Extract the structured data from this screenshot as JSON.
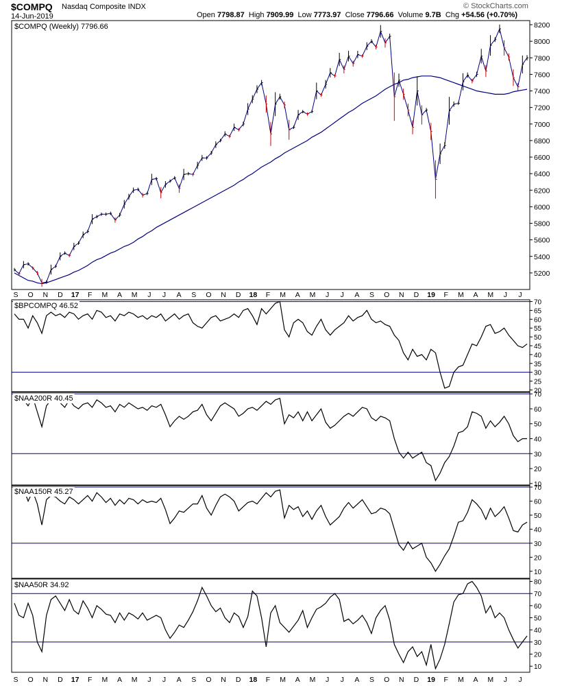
{
  "header": {
    "symbol": "$COMPQ",
    "name": "Nasdaq Composite INDX",
    "date": "14-Jun-2019",
    "watermark": "© StockCharts.com",
    "open_label": "Open",
    "open": "7798.87",
    "high_label": "High",
    "high": "7909.99",
    "low_label": "Low",
    "low": "7773.97",
    "close_label": "Close",
    "close": "7796.66",
    "volume_label": "Volume",
    "volume": "9.7B",
    "chg_label": "Chg",
    "chg": "+54.56 (+0.70%)"
  },
  "colors": {
    "price_up": "#000000",
    "price_down": "#cc0000",
    "ma": "#000080",
    "line": "#000000",
    "ref": "#000080",
    "border": "#000000"
  },
  "x_axis": {
    "labels": [
      "S",
      "O",
      "N",
      "D",
      "17",
      "F",
      "M",
      "A",
      "M",
      "J",
      "J",
      "A",
      "S",
      "O",
      "N",
      "D",
      "18",
      "F",
      "M",
      "A",
      "M",
      "J",
      "J",
      "A",
      "S",
      "O",
      "N",
      "D",
      "19",
      "F",
      "M",
      "A",
      "M",
      "J",
      "J"
    ]
  },
  "chart_data": [
    {
      "type": "line",
      "title": "$COMPQ (Weekly) 7796.66",
      "ylim": [
        5000,
        8250
      ],
      "y_ticks": [
        5200,
        5400,
        5600,
        5800,
        6000,
        6200,
        6400,
        6600,
        6800,
        7000,
        7200,
        7400,
        7600,
        7800,
        8000,
        8200
      ],
      "series": [
        {
          "role": "price",
          "values": [
            5240,
            5190,
            5300,
            5310,
            5260,
            5200,
            5080,
            5090,
            5240,
            5280,
            5400,
            5440,
            5410,
            5520,
            5560,
            5660,
            5700,
            5850,
            5880,
            5910,
            5910,
            5920,
            5840,
            5900,
            6030,
            6120,
            6200,
            6210,
            6140,
            6160,
            6330,
            6340,
            6170,
            6270,
            6310,
            6350,
            6220,
            6390,
            6400,
            6390,
            6500,
            6590,
            6590,
            6650,
            6750,
            6800,
            6880,
            6850,
            6960,
            6930,
            7000,
            7180,
            7300,
            7420,
            7500,
            7240,
            6880,
            7240,
            7330,
            7230,
            6930,
            6960,
            7110,
            7150,
            7120,
            7150,
            7400,
            7350,
            7480,
            7620,
            7580,
            7780,
            7660,
            7820,
            7730,
            7840,
            7820,
            7940,
            8000,
            7930,
            8120,
            7980,
            8060,
            7330,
            7530,
            7360,
            7170,
            6960,
            7400,
            7110,
            7170,
            6910,
            6330,
            6640,
            6740,
            7160,
            7240,
            7250,
            7510,
            7590,
            7520,
            7600,
            7820,
            7640,
            7950,
            8020,
            8150,
            7920,
            7810,
            7560,
            7450,
            7720,
            7800
          ]
        },
        {
          "role": "ma",
          "name": "",
          "values": [
            5200,
            5170,
            5140,
            5110,
            5100,
            5080,
            5070,
            5080,
            5100,
            5120,
            5140,
            5160,
            5180,
            5210,
            5230,
            5260,
            5290,
            5330,
            5360,
            5380,
            5410,
            5440,
            5460,
            5490,
            5520,
            5540,
            5570,
            5610,
            5640,
            5680,
            5710,
            5750,
            5780,
            5810,
            5840,
            5870,
            5900,
            5930,
            5960,
            5990,
            6020,
            6050,
            6080,
            6110,
            6140,
            6170,
            6200,
            6230,
            6260,
            6300,
            6330,
            6370,
            6400,
            6440,
            6480,
            6510,
            6540,
            6580,
            6610,
            6650,
            6680,
            6710,
            6740,
            6770,
            6800,
            6840,
            6870,
            6900,
            6940,
            6980,
            7020,
            7060,
            7100,
            7140,
            7170,
            7210,
            7250,
            7280,
            7310,
            7340,
            7380,
            7420,
            7450,
            7480,
            7500,
            7530,
            7540,
            7560,
            7570,
            7580,
            7580,
            7580,
            7570,
            7560,
            7540,
            7520,
            7500,
            7480,
            7460,
            7440,
            7420,
            7400,
            7390,
            7380,
            7370,
            7360,
            7360,
            7360,
            7370,
            7390,
            7400,
            7410,
            7420
          ]
        }
      ]
    },
    {
      "type": "line",
      "title": "$BPCOMPQ 46.52",
      "ylim": [
        19,
        71
      ],
      "y_ticks": [
        20,
        25,
        30,
        35,
        40,
        45,
        50,
        55,
        60,
        65,
        70
      ],
      "ref_lines": [
        70,
        30
      ],
      "values": [
        63,
        60,
        60,
        55,
        62,
        58,
        52,
        62,
        64,
        62,
        63,
        61,
        64,
        63,
        60,
        62,
        63,
        60,
        65,
        64,
        61,
        62,
        59,
        63,
        62,
        64,
        63,
        61,
        62,
        60,
        62,
        61,
        63,
        59,
        61,
        63,
        60,
        62,
        63,
        58,
        56,
        55,
        58,
        61,
        62,
        59,
        60,
        61,
        63,
        61,
        65,
        66,
        62,
        57,
        66,
        63,
        66,
        69,
        70,
        54,
        50,
        58,
        60,
        58,
        53,
        51,
        56,
        60,
        54,
        51,
        54,
        56,
        58,
        62,
        59,
        61,
        62,
        65,
        60,
        58,
        59,
        57,
        56,
        51,
        48,
        41,
        37,
        43,
        39,
        40,
        37,
        43,
        41,
        30,
        21,
        22,
        30,
        33,
        34,
        40,
        46,
        45,
        50,
        56,
        57,
        52,
        53,
        55,
        51,
        48,
        45,
        44,
        46
      ]
    },
    {
      "type": "line",
      "title": "$NAA200R 40.45",
      "ylim": [
        9,
        71
      ],
      "y_ticks": [
        10,
        20,
        30,
        40,
        50,
        60,
        70
      ],
      "ref_lines": [
        70,
        30
      ],
      "values": [
        66,
        64,
        66,
        62,
        68,
        58,
        48,
        62,
        66,
        65,
        64,
        61,
        66,
        62,
        60,
        63,
        64,
        61,
        66,
        64,
        61,
        62,
        58,
        63,
        61,
        64,
        62,
        60,
        61,
        59,
        62,
        61,
        63,
        56,
        48,
        52,
        55,
        53,
        55,
        58,
        59,
        63,
        56,
        52,
        57,
        62,
        64,
        62,
        60,
        55,
        57,
        60,
        61,
        59,
        62,
        65,
        63,
        66,
        67,
        50,
        56,
        54,
        58,
        52,
        58,
        52,
        56,
        60,
        51,
        47,
        49,
        52,
        55,
        57,
        55,
        58,
        61,
        60,
        54,
        52,
        55,
        54,
        52,
        40,
        31,
        27,
        31,
        27,
        29,
        31,
        24,
        22,
        12,
        17,
        24,
        28,
        35,
        44,
        45,
        48,
        58,
        57,
        55,
        47,
        52,
        48,
        51,
        55,
        50,
        42,
        38,
        40,
        40
      ]
    },
    {
      "type": "line",
      "title": "$NAA150R 45.27",
      "ylim": [
        5,
        71
      ],
      "y_ticks": [
        10,
        20,
        30,
        40,
        50,
        60,
        70
      ],
      "ref_lines": [
        70,
        30
      ],
      "values": [
        68,
        66,
        69,
        60,
        67,
        58,
        43,
        61,
        64,
        63,
        60,
        58,
        63,
        61,
        58,
        61,
        64,
        60,
        66,
        63,
        59,
        62,
        57,
        61,
        58,
        62,
        61,
        58,
        61,
        59,
        60,
        59,
        62,
        54,
        44,
        48,
        53,
        52,
        55,
        58,
        58,
        64,
        55,
        50,
        57,
        63,
        65,
        63,
        60,
        53,
        56,
        59,
        60,
        58,
        62,
        66,
        63,
        67,
        68,
        48,
        57,
        54,
        56,
        49,
        53,
        47,
        53,
        57,
        49,
        43,
        46,
        49,
        55,
        59,
        55,
        58,
        61,
        56,
        51,
        52,
        55,
        54,
        51,
        40,
        29,
        25,
        31,
        26,
        28,
        30,
        20,
        16,
        10,
        15,
        21,
        26,
        35,
        45,
        46,
        52,
        61,
        58,
        54,
        47,
        55,
        49,
        52,
        56,
        48,
        39,
        38,
        43,
        45
      ]
    },
    {
      "type": "line",
      "title": "$NAA50R 34.92",
      "ylim": [
        5,
        82
      ],
      "y_ticks": [
        10,
        20,
        30,
        40,
        50,
        60,
        70,
        80
      ],
      "ref_lines": [
        70,
        30
      ],
      "values": [
        62,
        52,
        50,
        62,
        52,
        30,
        22,
        52,
        65,
        68,
        62,
        56,
        65,
        56,
        53,
        64,
        58,
        50,
        60,
        57,
        53,
        52,
        46,
        54,
        48,
        54,
        52,
        49,
        54,
        48,
        50,
        52,
        50,
        40,
        33,
        38,
        44,
        42,
        48,
        55,
        64,
        75,
        68,
        60,
        55,
        58,
        50,
        46,
        54,
        51,
        42,
        51,
        72,
        68,
        50,
        26,
        54,
        60,
        46,
        42,
        38,
        43,
        48,
        56,
        42,
        50,
        57,
        59,
        62,
        67,
        70,
        65,
        47,
        49,
        45,
        48,
        52,
        46,
        37,
        50,
        56,
        60,
        48,
        28,
        20,
        13,
        22,
        26,
        18,
        22,
        11,
        28,
        8,
        16,
        28,
        45,
        63,
        69,
        70,
        78,
        80,
        75,
        68,
        54,
        60,
        50,
        54,
        50,
        40,
        32,
        25,
        30,
        35
      ]
    }
  ]
}
